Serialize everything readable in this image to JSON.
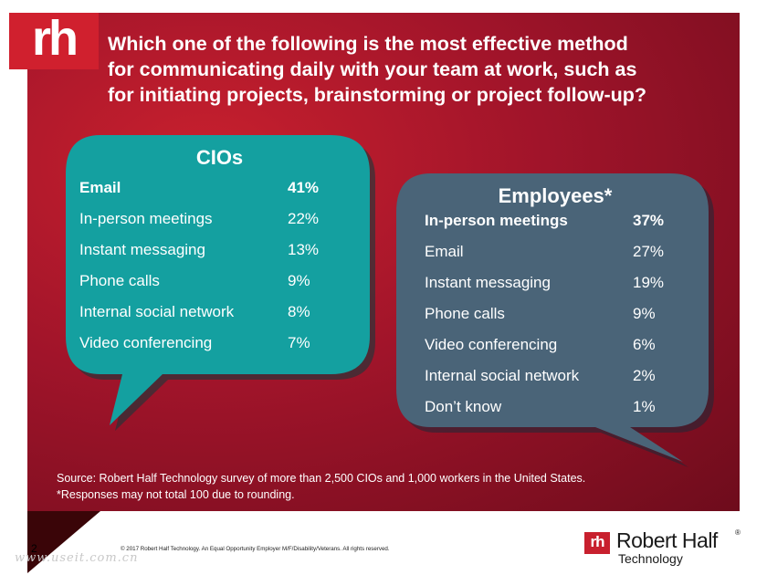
{
  "logo": {
    "text": "rh"
  },
  "question": {
    "lines": [
      "Which one of the following is the most effective method",
      "for communicating daily with your team at work, such as",
      "for initiating projects, brainstorming or project follow-up?"
    ]
  },
  "cios": {
    "title": "CIOs",
    "color": "#14a0a0",
    "rows": [
      {
        "label": "Email",
        "value": "41%"
      },
      {
        "label": "In-person meetings",
        "value": "22%"
      },
      {
        "label": "Instant messaging",
        "value": "13%"
      },
      {
        "label": "Phone calls",
        "value": "9%"
      },
      {
        "label": "Internal social network",
        "value": "8%"
      },
      {
        "label": "Video conferencing",
        "value": "7%"
      }
    ]
  },
  "employees": {
    "title": "Employees*",
    "color": "#4a6478",
    "rows": [
      {
        "label": "In-person meetings",
        "value": "37%"
      },
      {
        "label": "Email",
        "value": "27%"
      },
      {
        "label": "Instant messaging",
        "value": "19%"
      },
      {
        "label": "Phone calls",
        "value": "9%"
      },
      {
        "label": "Video conferencing",
        "value": "6%"
      },
      {
        "label": "Internal social network",
        "value": "2%"
      },
      {
        "label": "Don’t know",
        "value": "1%"
      }
    ]
  },
  "source": {
    "line1": "Source: Robert Half Technology survey of more than 2,500 CIOs and 1,000 workers in the United States.",
    "line2": "*Responses may not total 100 due to rounding."
  },
  "footer": {
    "page_number": "2",
    "copyright": "© 2017 Robert Half Technology. An Equal Opportunity Employer M/F/Disability/Veterans. All rights reserved.",
    "watermark": "www.useit.com.cn"
  },
  "brand": {
    "mark": "rh",
    "name": "Robert Half",
    "registered": "®",
    "sub": "Technology"
  }
}
